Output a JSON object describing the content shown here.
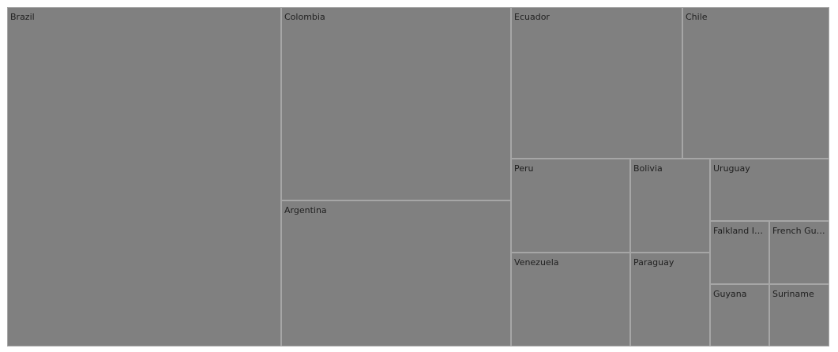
{
  "chart_data": {
    "type": "treemap",
    "title": "",
    "colors": {
      "tile_fill": "#808080",
      "tile_border": "#a6a6a6",
      "label_text": "#1f1f1f"
    },
    "items": [
      {
        "label": "Brazil",
        "value": 22.7
      },
      {
        "label": "Colombia",
        "value": 10.6
      },
      {
        "label": "Argentina",
        "value": 8.3
      },
      {
        "label": "Ecuador",
        "value": 5.4
      },
      {
        "label": "Chile",
        "value": 4.7
      },
      {
        "label": "Peru",
        "value": 2.8
      },
      {
        "label": "Venezuela",
        "value": 2.9
      },
      {
        "label": "Bolivia",
        "value": 1.9
      },
      {
        "label": "Paraguay",
        "value": 1.9
      },
      {
        "label": "Uruguay",
        "value": 1.4
      },
      {
        "label": "Falkland Isl...",
        "value": 0.6
      },
      {
        "label": "French Gui...",
        "value": 0.6
      },
      {
        "label": "Guyana",
        "value": 0.6
      },
      {
        "label": "Suriname",
        "value": 0.6
      }
    ]
  }
}
